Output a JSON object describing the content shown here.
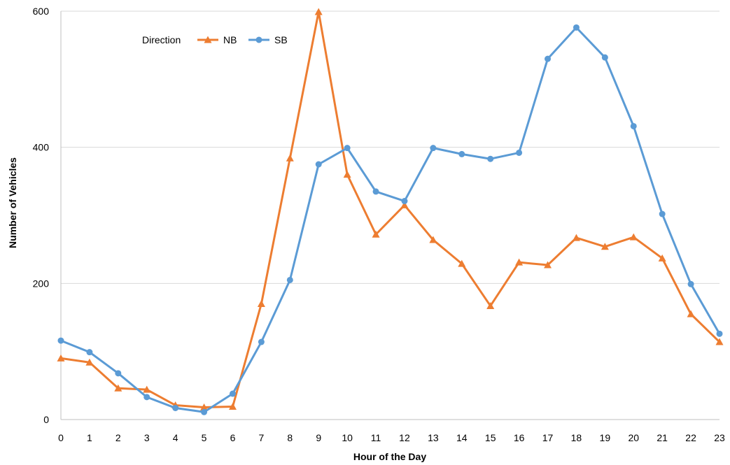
{
  "chart_data": {
    "type": "line",
    "title": "",
    "xlabel": "Hour of the Day",
    "ylabel": "Number of Vehicles",
    "x": [
      0,
      1,
      2,
      3,
      4,
      5,
      6,
      7,
      8,
      9,
      10,
      11,
      12,
      13,
      14,
      15,
      16,
      17,
      18,
      19,
      20,
      21,
      22,
      23
    ],
    "xlim": [
      0,
      23
    ],
    "ylim": [
      0,
      600
    ],
    "yticks": [
      0,
      200,
      400,
      600
    ],
    "ytick_labels": [
      "0",
      "200",
      "400",
      "600"
    ],
    "grid": true,
    "legend": {
      "title": "Direction",
      "placement": "top-left"
    },
    "series": [
      {
        "name": "NB",
        "color": "#ED7D31",
        "marker": "triangle",
        "values": [
          90,
          84,
          46,
          44,
          21,
          18,
          19,
          170,
          384,
          599,
          360,
          272,
          315,
          264,
          229,
          167,
          231,
          227,
          267,
          254,
          268,
          237,
          155,
          114
        ]
      },
      {
        "name": "SB",
        "color": "#5B9BD5",
        "marker": "circle",
        "values": [
          116,
          99,
          68,
          33,
          17,
          11,
          38,
          114,
          205,
          375,
          399,
          335,
          321,
          399,
          390,
          383,
          392,
          530,
          576,
          532,
          431,
          302,
          199,
          126
        ]
      }
    ]
  }
}
